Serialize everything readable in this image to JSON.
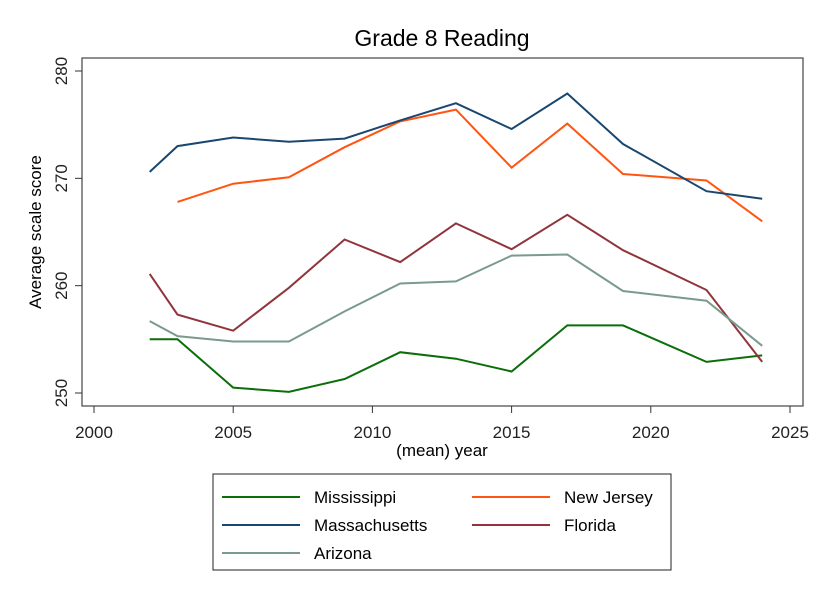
{
  "chart_data": {
    "type": "line",
    "title": "Grade 8 Reading",
    "xlabel": "(mean) year",
    "ylabel": "Average scale score",
    "xlim": [
      2000,
      2025
    ],
    "ylim": [
      250,
      280
    ],
    "xticks": [
      2000,
      2005,
      2010,
      2015,
      2020,
      2025
    ],
    "yticks": [
      250,
      260,
      270,
      280
    ],
    "grid": false,
    "legend_position": "bottom",
    "x": [
      2002,
      2003,
      2005,
      2007,
      2009,
      2011,
      2013,
      2015,
      2017,
      2019,
      2022,
      2024
    ],
    "series": [
      {
        "name": "Mississippi",
        "color": "#0b6e0b",
        "values": [
          255.0,
          255.0,
          250.5,
          250.1,
          251.3,
          253.8,
          253.2,
          252.0,
          256.3,
          256.3,
          252.9,
          253.5
        ]
      },
      {
        "name": "New Jersey",
        "color": "#ff5511",
        "values": [
          null,
          267.8,
          269.5,
          270.1,
          272.9,
          275.3,
          276.4,
          271.0,
          275.1,
          270.4,
          269.8,
          266.0
        ]
      },
      {
        "name": "Massachusetts",
        "color": "#1a476f",
        "values": [
          270.6,
          273.0,
          273.8,
          273.4,
          273.7,
          275.4,
          277.0,
          274.6,
          277.9,
          273.2,
          268.8,
          268.1
        ]
      },
      {
        "name": "Florida",
        "color": "#90353b",
        "values": [
          261.1,
          257.3,
          255.8,
          259.8,
          264.3,
          262.2,
          265.8,
          263.4,
          266.6,
          263.3,
          259.6,
          252.9
        ]
      },
      {
        "name": "Arizona",
        "color": "#7a9a8e",
        "values": [
          256.7,
          255.3,
          254.8,
          254.8,
          257.6,
          260.2,
          260.4,
          262.8,
          262.9,
          259.5,
          258.6,
          254.4
        ]
      }
    ]
  }
}
